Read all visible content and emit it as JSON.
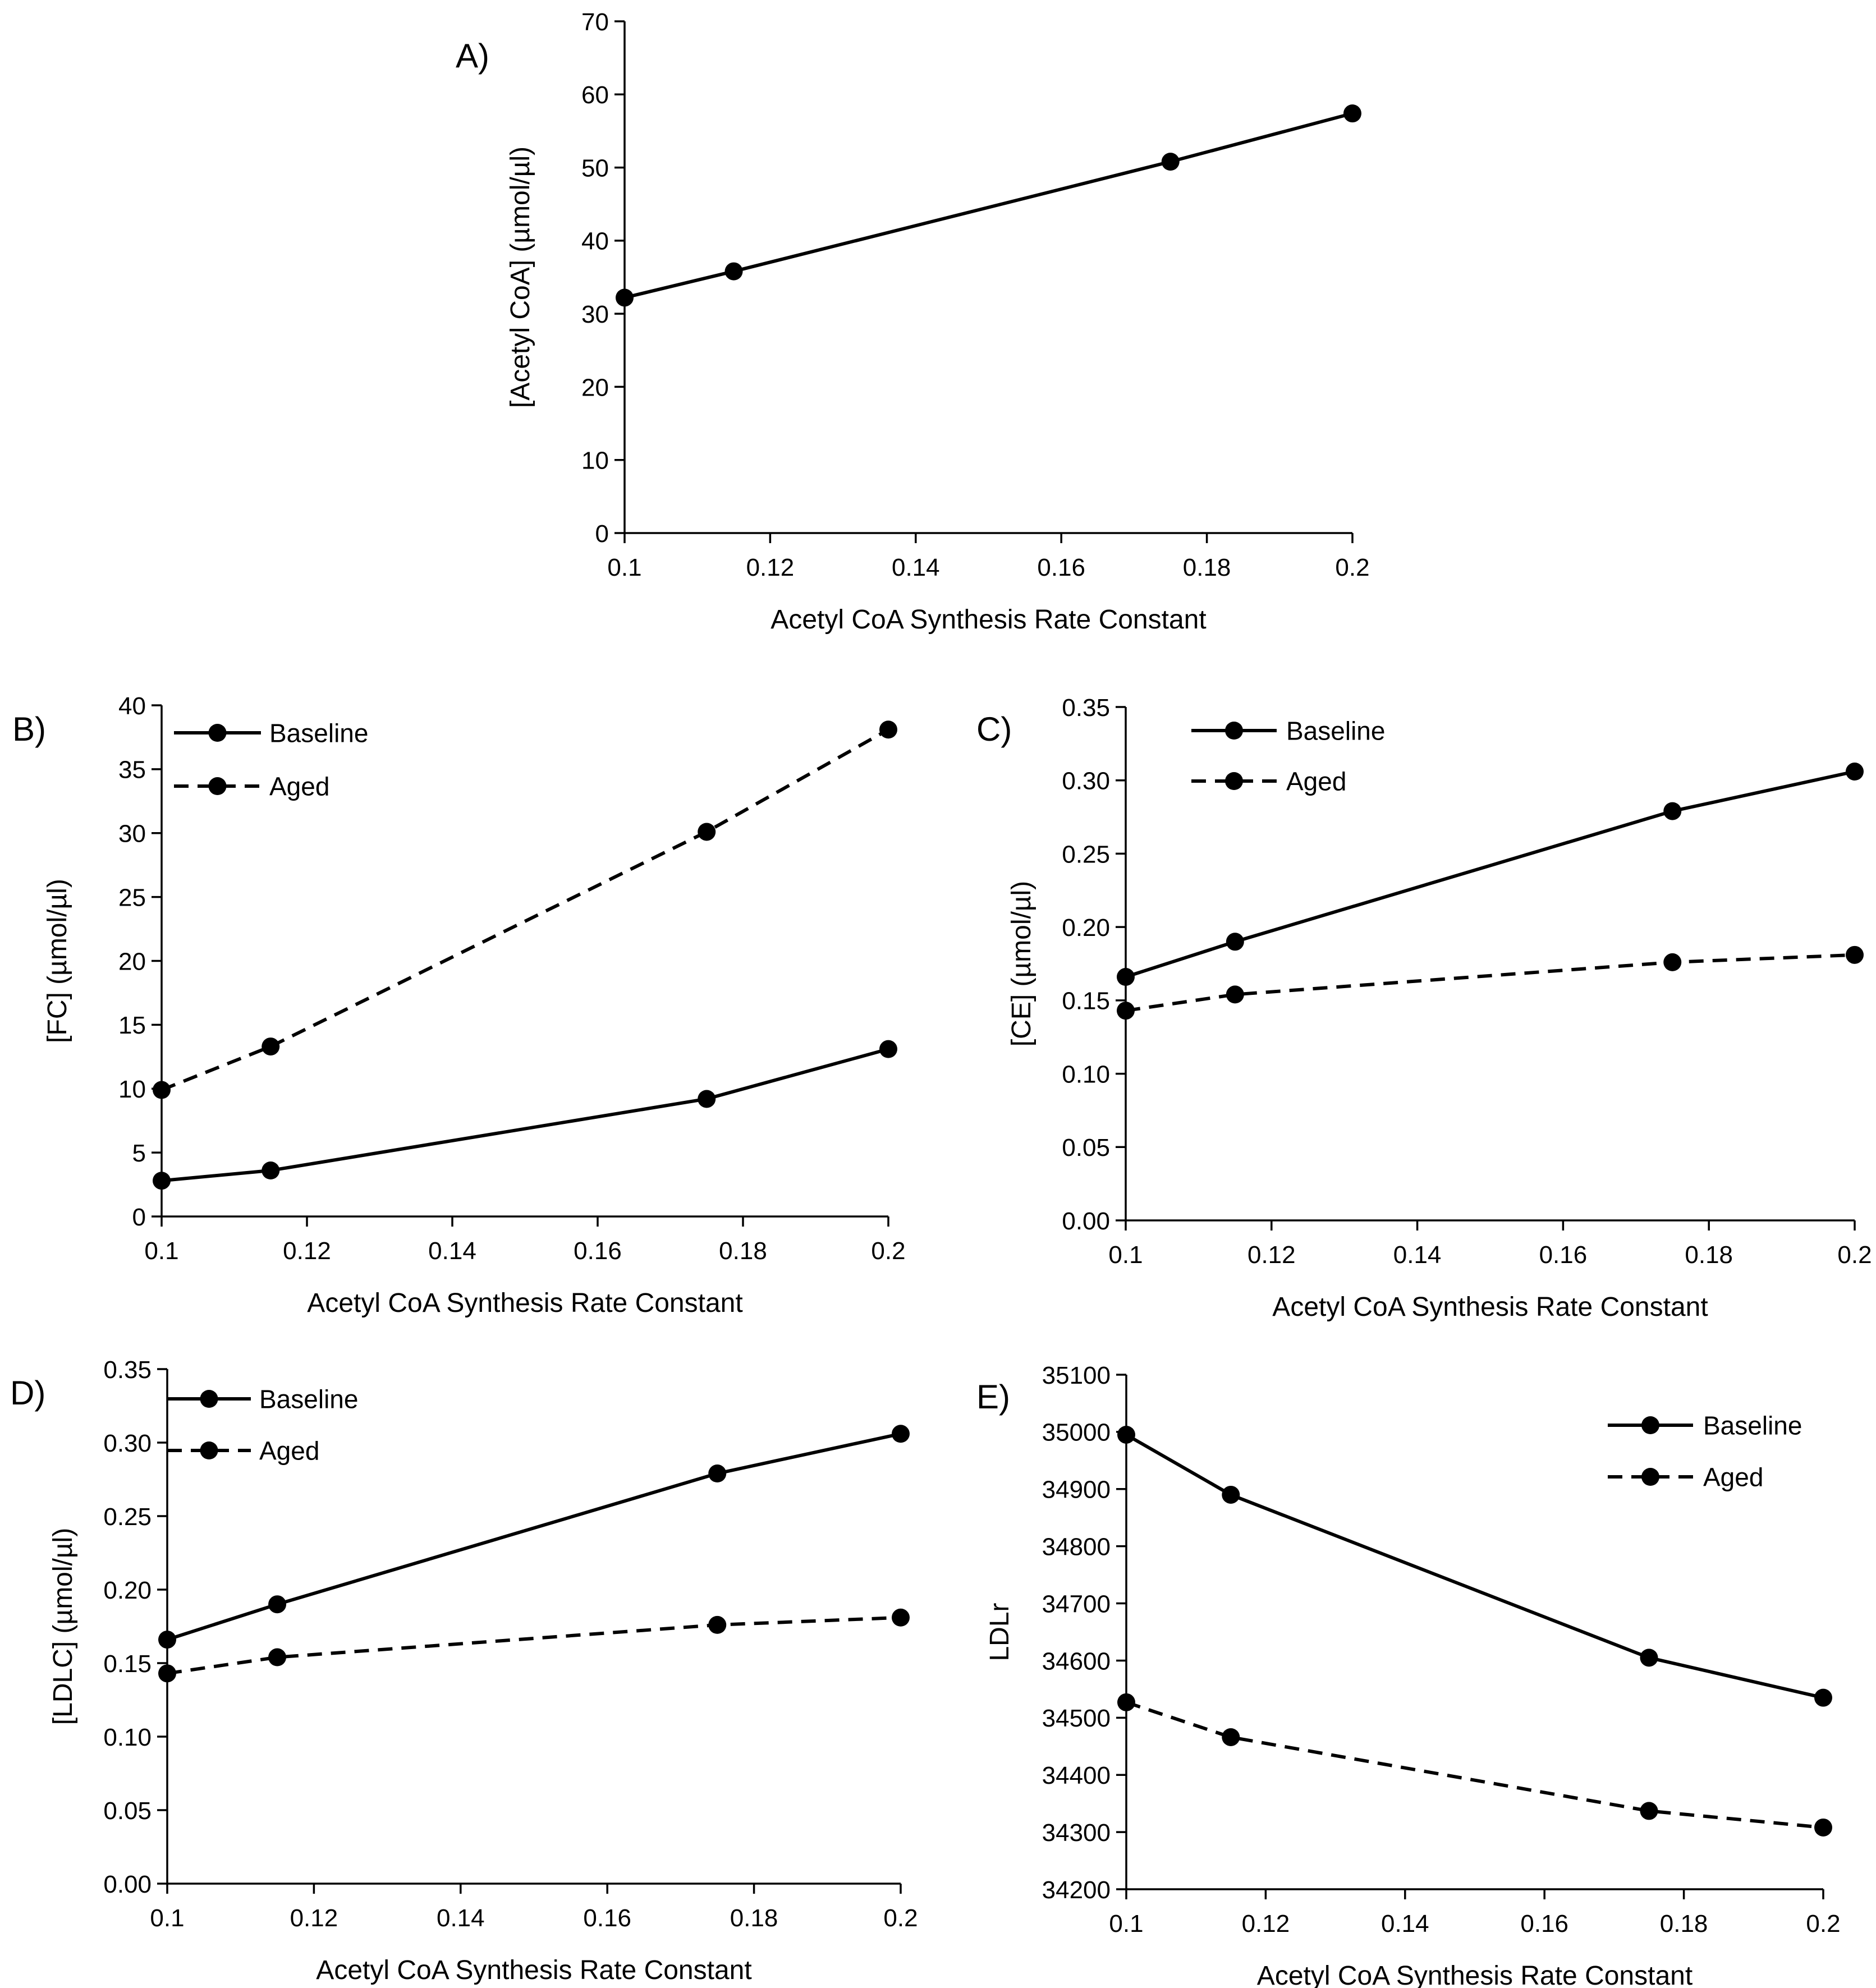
{
  "colors": {
    "ink": "#000000",
    "background": "#ffffff"
  },
  "chart_data": [
    {
      "id": "A",
      "panel_label": "A)",
      "type": "line",
      "xlabel": "Acetyl CoA Synthesis Rate Constant",
      "ylabel": "[Acetyl CoA] (µmol/µl)",
      "xlim": [
        0.1,
        0.2
      ],
      "ylim": [
        0,
        70
      ],
      "xticks": [
        "0.1",
        "0.12",
        "0.14",
        "0.16",
        "0.18",
        "0.2"
      ],
      "xtick_values": [
        0.1,
        0.12,
        0.14,
        0.16,
        0.18,
        0.2
      ],
      "yticks": [
        "0",
        "10",
        "20",
        "30",
        "40",
        "50",
        "60",
        "70"
      ],
      "ytick_values": [
        0,
        10,
        20,
        30,
        40,
        50,
        60,
        70
      ],
      "x": [
        0.1,
        0.115,
        0.175,
        0.2
      ],
      "series": [
        {
          "name": "",
          "style": "solid",
          "values": [
            32.2,
            35.8,
            50.8,
            57.4
          ]
        }
      ],
      "legend": null
    },
    {
      "id": "B",
      "panel_label": "B)",
      "type": "line",
      "xlabel": "Acetyl CoA Synthesis Rate Constant",
      "ylabel": "[FC] (µmol/µl)",
      "xlim": [
        0.1,
        0.2
      ],
      "ylim": [
        0,
        40
      ],
      "xticks": [
        "0.1",
        "0.12",
        "0.14",
        "0.16",
        "0.18",
        "0.2"
      ],
      "xtick_values": [
        0.1,
        0.12,
        0.14,
        0.16,
        0.18,
        0.2
      ],
      "yticks": [
        "0",
        "5",
        "10",
        "15",
        "20",
        "25",
        "30",
        "35",
        "40"
      ],
      "ytick_values": [
        0,
        5,
        10,
        15,
        20,
        25,
        30,
        35,
        40
      ],
      "x": [
        0.1,
        0.115,
        0.175,
        0.2
      ],
      "series": [
        {
          "name": "Baseline",
          "style": "solid",
          "values": [
            2.8,
            3.6,
            9.2,
            13.1
          ]
        },
        {
          "name": "Aged",
          "style": "dashed",
          "values": [
            9.9,
            13.3,
            30.1,
            38.1
          ]
        }
      ],
      "legend": "top-left"
    },
    {
      "id": "C",
      "panel_label": "C)",
      "type": "line",
      "xlabel": "Acetyl CoA Synthesis Rate Constant",
      "ylabel": "[CE] (µmol/µl)",
      "xlim": [
        0.1,
        0.2
      ],
      "ylim": [
        0,
        0.35
      ],
      "xticks": [
        "0.1",
        "0.12",
        "0.14",
        "0.16",
        "0.18",
        "0.2"
      ],
      "xtick_values": [
        0.1,
        0.12,
        0.14,
        0.16,
        0.18,
        0.2
      ],
      "yticks": [
        "0.00",
        "0.05",
        "0.10",
        "0.15",
        "0.20",
        "0.25",
        "0.30",
        "0.35"
      ],
      "ytick_values": [
        0,
        0.05,
        0.1,
        0.15,
        0.2,
        0.25,
        0.3,
        0.35
      ],
      "x": [
        0.1,
        0.115,
        0.175,
        0.2
      ],
      "series": [
        {
          "name": "Baseline",
          "style": "solid",
          "values": [
            0.166,
            0.19,
            0.279,
            0.306
          ]
        },
        {
          "name": "Aged",
          "style": "dashed",
          "values": [
            0.143,
            0.154,
            0.176,
            0.181
          ]
        }
      ],
      "legend": "top-left"
    },
    {
      "id": "D",
      "panel_label": "D)",
      "type": "line",
      "xlabel": "Acetyl CoA Synthesis Rate Constant",
      "ylabel": "[LDLC] (µmol/µl)",
      "xlim": [
        0.1,
        0.2
      ],
      "ylim": [
        0,
        0.35
      ],
      "xticks": [
        "0.1",
        "0.12",
        "0.14",
        "0.16",
        "0.18",
        "0.2"
      ],
      "xtick_values": [
        0.1,
        0.12,
        0.14,
        0.16,
        0.18,
        0.2
      ],
      "yticks": [
        "0.00",
        "0.05",
        "0.10",
        "0.15",
        "0.20",
        "0.25",
        "0.30",
        "0.35"
      ],
      "ytick_values": [
        0,
        0.05,
        0.1,
        0.15,
        0.2,
        0.25,
        0.3,
        0.35
      ],
      "x": [
        0.1,
        0.115,
        0.175,
        0.2
      ],
      "series": [
        {
          "name": "Baseline",
          "style": "solid",
          "values": [
            0.166,
            0.19,
            0.279,
            0.306
          ]
        },
        {
          "name": "Aged",
          "style": "dashed",
          "values": [
            0.143,
            0.154,
            0.176,
            0.181
          ]
        }
      ],
      "legend": "top-left"
    },
    {
      "id": "E",
      "panel_label": "E)",
      "type": "line",
      "xlabel": "Acetyl CoA Synthesis Rate Constant",
      "ylabel": "LDLr",
      "xlim": [
        0.1,
        0.2
      ],
      "ylim": [
        34200,
        35100
      ],
      "xticks": [
        "0.1",
        "0.12",
        "0.14",
        "0.16",
        "0.18",
        "0.2"
      ],
      "xtick_values": [
        0.1,
        0.12,
        0.14,
        0.16,
        0.18,
        0.2
      ],
      "yticks": [
        "34200",
        "34300",
        "34400",
        "34500",
        "34600",
        "34700",
        "34800",
        "34900",
        "35000",
        "35100"
      ],
      "ytick_values": [
        34200,
        34300,
        34400,
        34500,
        34600,
        34700,
        34800,
        34900,
        35000,
        35100
      ],
      "x": [
        0.1,
        0.115,
        0.175,
        0.2
      ],
      "series": [
        {
          "name": "Baseline",
          "style": "solid",
          "values": [
            34995,
            34890,
            34605,
            34535
          ]
        },
        {
          "name": "Aged",
          "style": "dashed",
          "values": [
            34527,
            34466,
            34337,
            34308
          ]
        }
      ],
      "legend": "top-right"
    }
  ]
}
